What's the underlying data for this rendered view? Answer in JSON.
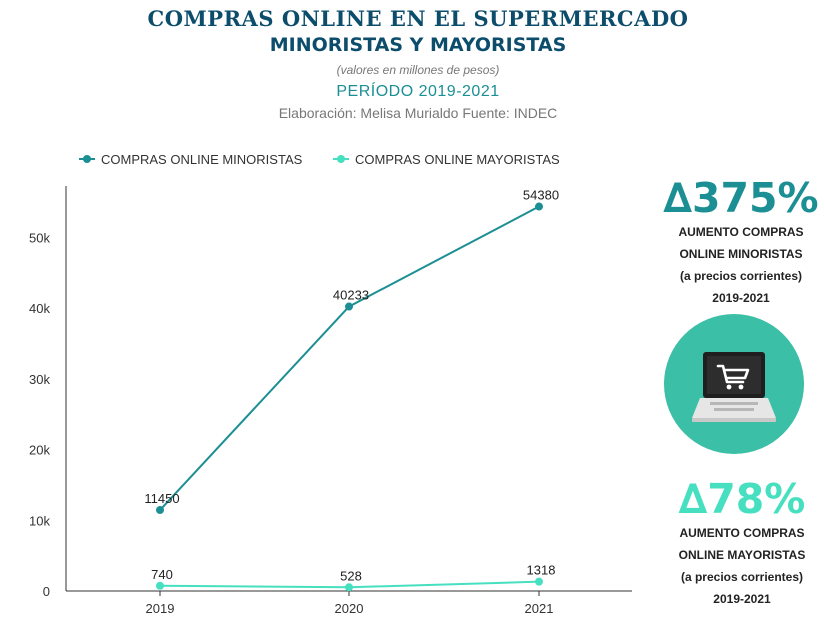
{
  "header": {
    "title": "COMPRAS ONLINE EN EL SUPERMERCADO",
    "subtitle": "MINORISTAS Y MAYORISTAS",
    "units": "(valores en millones de pesos)",
    "period": "PERÍODO 2019-2021",
    "credits": "Elaboración: Melisa Murialdo Fuente: INDEC"
  },
  "chart_data": {
    "type": "line",
    "x": [
      "2019",
      "2020",
      "2021"
    ],
    "series": [
      {
        "name": "COMPRAS ONLINE MINORISTAS",
        "values": [
          11450,
          40233,
          54380
        ],
        "labels": [
          "11450",
          "40233",
          "54380"
        ],
        "color": "#1b8f93"
      },
      {
        "name": "COMPRAS ONLINE MAYORISTAS",
        "values": [
          740,
          528,
          1318
        ],
        "labels": [
          "740",
          "528",
          "1318"
        ],
        "color": "#46dfc0"
      }
    ],
    "y_ticks": [
      0,
      10000,
      20000,
      30000,
      40000,
      50000
    ],
    "y_tick_labels": [
      "0",
      "10k",
      "20k",
      "30k",
      "40k",
      "50k"
    ],
    "ylim": [
      0,
      57500
    ],
    "grid": false,
    "legend_position": "top-left"
  },
  "stats": {
    "retail": {
      "value": "∆375%",
      "lines": [
        "AUMENTO COMPRAS",
        "ONLINE MINORISTAS",
        "(a precios corrientes)",
        "2019-2021"
      ],
      "color": "#1b8f93"
    },
    "wholesale": {
      "value": "∆78%",
      "lines": [
        "AUMENTO COMPRAS",
        "ONLINE MAYORISTAS",
        "(a precios corrientes)",
        "2019-2021"
      ],
      "color": "#46dfc0"
    }
  },
  "badge": {
    "icon": "laptop-cart-icon",
    "color": "#3bbfa6"
  }
}
